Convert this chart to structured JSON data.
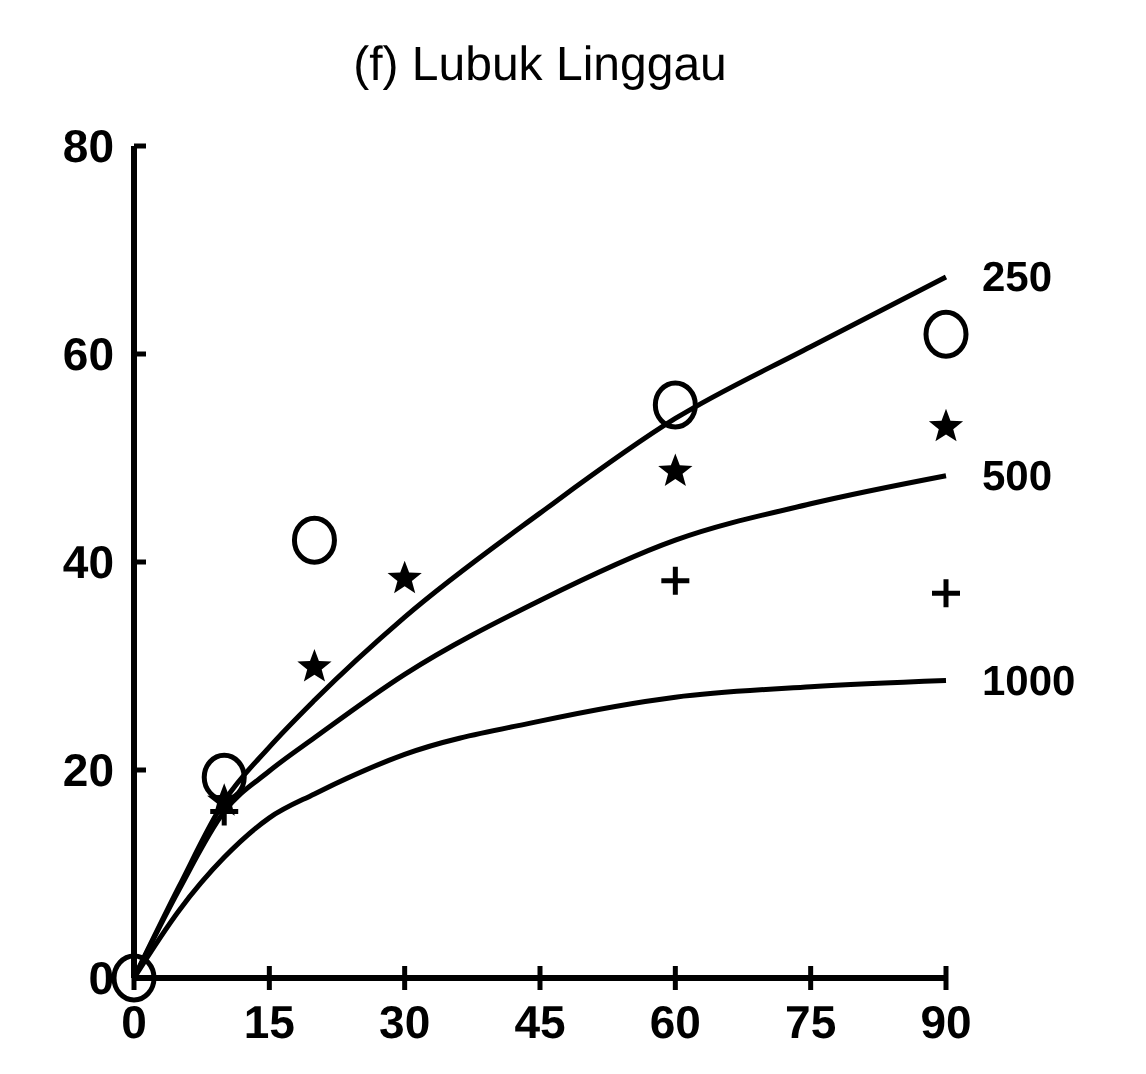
{
  "chart_data": {
    "type": "line",
    "title": "(f) Lubuk Linggau",
    "xlim": [
      0,
      90
    ],
    "ylim": [
      0,
      80
    ],
    "xticks": [
      0,
      15,
      30,
      45,
      60,
      75,
      90
    ],
    "yticks": [
      0,
      20,
      40,
      60,
      80
    ],
    "grid": false,
    "series": [
      {
        "name": "250",
        "color": "#000000",
        "marker": "none",
        "x": [
          0,
          5,
          10,
          15,
          20,
          30,
          45,
          60,
          75,
          90
        ],
        "values": [
          0,
          8.8,
          17,
          22.2,
          26.7,
          34.7,
          44.7,
          53.8,
          60.7,
          67.4
        ]
      },
      {
        "name": "500",
        "color": "#000000",
        "marker": "none",
        "x": [
          0,
          5,
          10,
          15,
          20,
          30,
          45,
          60,
          75,
          90
        ],
        "values": [
          0,
          8.5,
          16,
          19.9,
          23.1,
          29.2,
          36.3,
          42.1,
          45.6,
          48.3
        ]
      },
      {
        "name": "1000",
        "color": "#000000",
        "marker": "none",
        "x": [
          0,
          5,
          10,
          15,
          20,
          30,
          45,
          60,
          75,
          90
        ],
        "values": [
          0,
          6.5,
          11.6,
          15.4,
          17.7,
          21.5,
          24.7,
          27,
          28,
          28.6
        ]
      },
      {
        "type": "scatter",
        "color": "#000000",
        "marker": "circle",
        "x": [
          0,
          10,
          20,
          60,
          90
        ],
        "values": [
          0,
          19.3,
          42.1,
          55.1,
          61.9
        ]
      },
      {
        "type": "scatter",
        "color": "#000000",
        "marker": "star",
        "x": [
          10,
          20,
          30,
          60,
          90
        ],
        "values": [
          17,
          29.9,
          38.4,
          48.7,
          53
        ]
      },
      {
        "type": "scatter",
        "color": "#000000",
        "marker": "cross",
        "x": [
          10,
          60,
          90
        ],
        "values": [
          16,
          38.2,
          37
        ]
      }
    ]
  }
}
